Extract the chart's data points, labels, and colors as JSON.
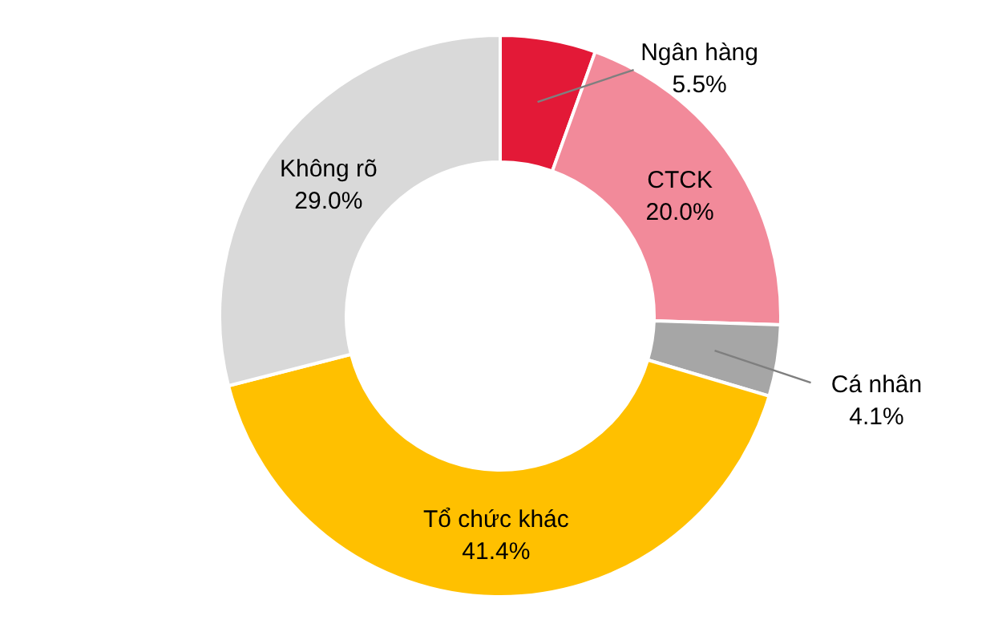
{
  "chart_data": {
    "type": "donut",
    "categories": [
      "Ngân hàng",
      "CTCK",
      "Cá nhân",
      "Tổ chức khác",
      "Không rõ"
    ],
    "values": [
      5.5,
      20.0,
      4.1,
      41.4,
      29.0
    ],
    "colors": [
      "#e31937",
      "#f28a9a",
      "#a6a6a6",
      "#ffc000",
      "#d9d9d9"
    ],
    "value_labels": [
      "5.5%",
      "20.0%",
      "4.1%",
      "41.4%",
      "29.0%"
    ],
    "legend": false
  }
}
